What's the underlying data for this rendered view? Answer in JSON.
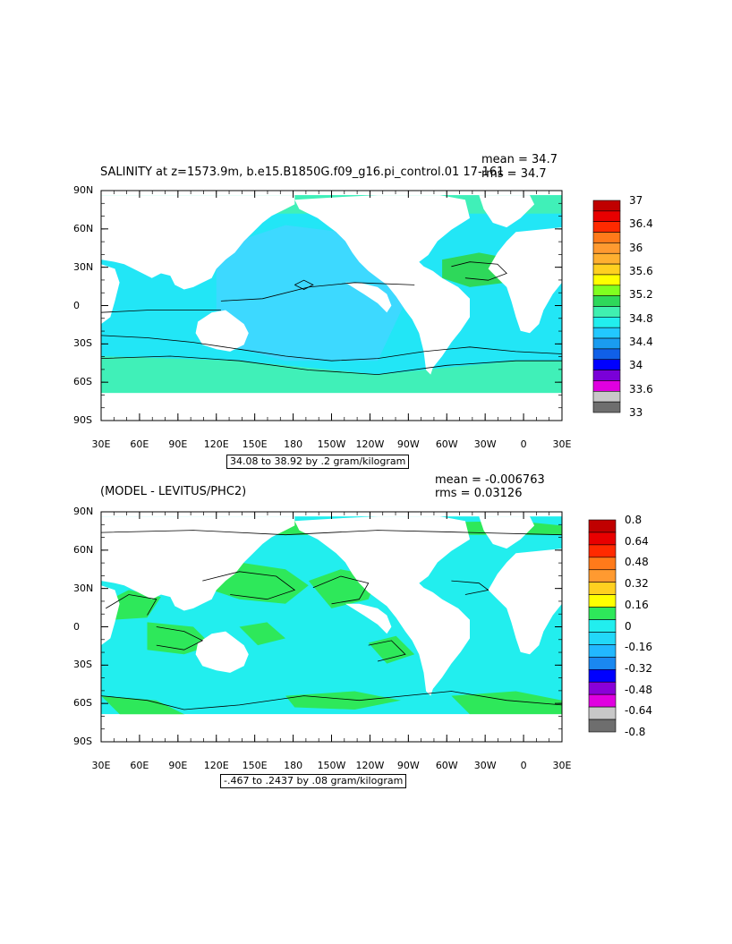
{
  "panels": [
    {
      "title": "SALINITY at z=1573.9m, b.e15.B1850G.f09_g16.pi_control.01 17-161",
      "mean_label": "mean = 34.7",
      "rms_label": "rms = 34.7",
      "contour_info": "34.08 to 38.92 by .2 gram/kilogram",
      "colorbar_labels": [
        "37",
        "36.4",
        "36",
        "35.6",
        "35.2",
        "34.8",
        "34.4",
        "34",
        "33.6",
        "33"
      ],
      "colorbar_colors": [
        "#c00000",
        "#e80000",
        "#ff2a00",
        "#ff7a1a",
        "#ff9a30",
        "#ffb030",
        "#ffd020",
        "#ffff00",
        "#80ff20",
        "#2ed85a",
        "#40f0b0",
        "#22eeee",
        "#22c8ff",
        "#1a9cf0",
        "#1060e8",
        "#0000ff",
        "#7a00d8",
        "#e000e0",
        "#c8c8c8",
        "#6e6e6e"
      ]
    },
    {
      "title": "(MODEL - LEVITUS/PHC2)",
      "mean_label": "mean = -0.006763",
      "rms_label": "rms = 0.03126",
      "contour_info": "-.467 to .2437 by .08 gram/kilogram",
      "colorbar_labels": [
        "0.8",
        "0.64",
        "0.48",
        "0.32",
        "0.16",
        "0",
        "-0.16",
        "-0.32",
        "-0.48",
        "-0.64",
        "-0.8"
      ],
      "colorbar_colors": [
        "#c00000",
        "#e80000",
        "#ff2a00",
        "#ff7a1a",
        "#ff9a30",
        "#ffd020",
        "#ffff00",
        "#2ee85a",
        "#22eeee",
        "#22d8f8",
        "#22b8ff",
        "#1a88f0",
        "#0000ff",
        "#8a00d8",
        "#e000e0",
        "#c8c8c8",
        "#6e6e6e"
      ]
    }
  ],
  "axes": {
    "lat_labels": [
      "90N",
      "60N",
      "30N",
      "0",
      "30S",
      "60S",
      "90S"
    ],
    "lon_labels": [
      "30E",
      "60E",
      "90E",
      "120E",
      "150E",
      "180",
      "150W",
      "120W",
      "90W",
      "60W",
      "30W",
      "0",
      "30E"
    ]
  },
  "map_colors": {
    "land": "#ffffff",
    "ocean_top": "#22e6f6",
    "ocean_top_alt": "#3dd9ff",
    "ocean_top_sub": "#40f0b8",
    "ocean_top_high": "#2ed85a",
    "ocean_bottom": "#22eeee",
    "ocean_bottom_pos": "#2ee85a",
    "contour": "#000000"
  }
}
